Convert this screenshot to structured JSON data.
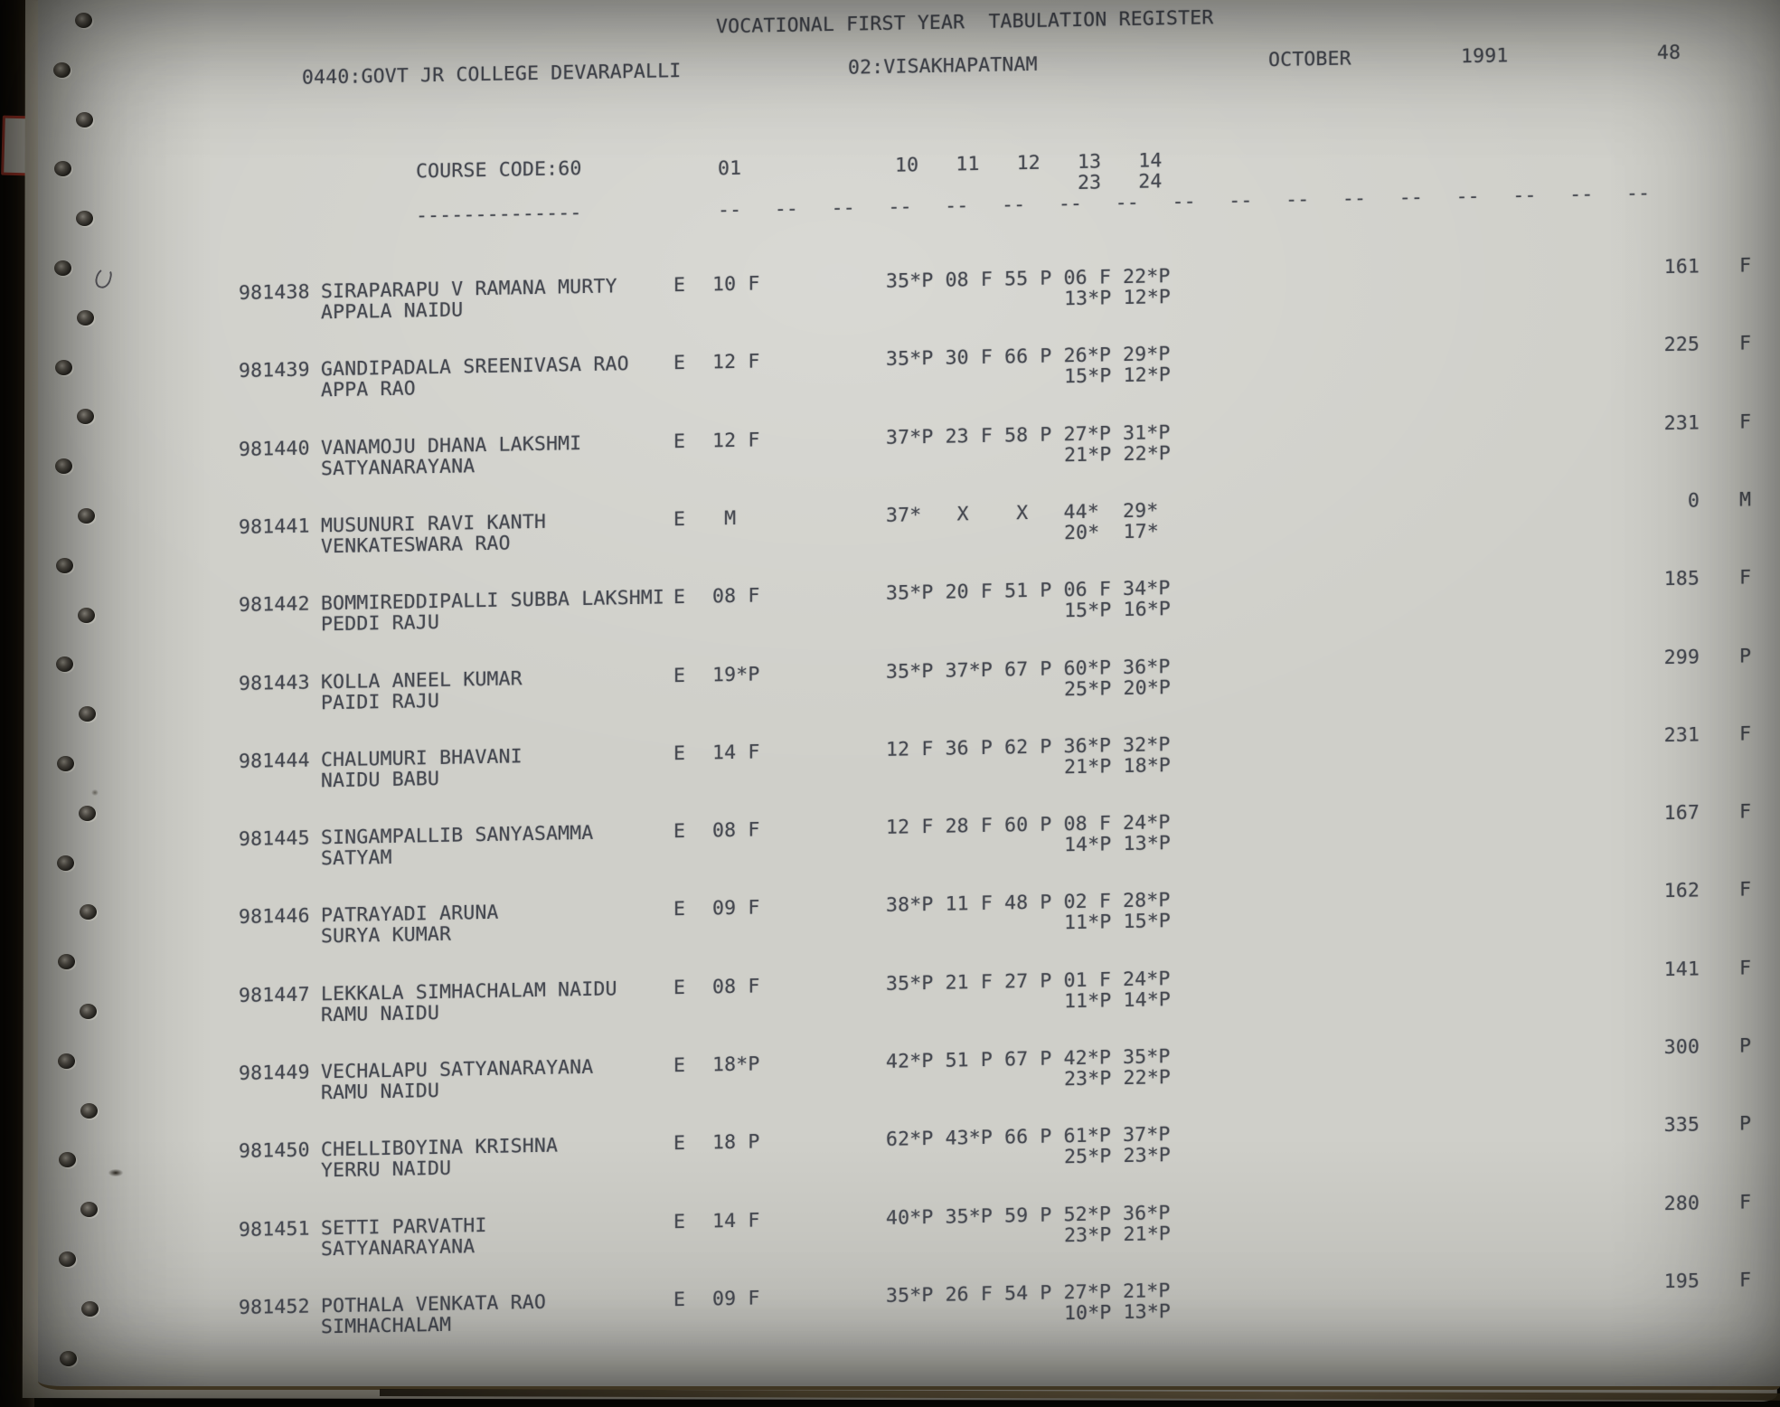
{
  "document": {
    "title": "VOCATIONAL FIRST YEAR  TABULATION REGISTER",
    "college": "0440:GOVT JR COLLEGE DEVARAPALLI",
    "district": "02:VISAKHAPATNAM",
    "month": "OCTOBER",
    "year": "1991",
    "page_number": "48"
  },
  "table": {
    "course_code": "COURSE CODE:60",
    "course_code_underline": "--------------",
    "column_01": "01",
    "subject_columns_row1": "10 11 12 13 14",
    "subject_columns_row2": "23 24",
    "column_separator_dashes": "-- -- -- -- -- -- -- -- -- -- -- -- -- -- -- -- --"
  },
  "students": [
    {
      "roll": "981438",
      "name": "SIRAPARAPU V RAMANA MURTY",
      "parent": "APPALA NAIDU",
      "medium": "E",
      "subject01": "10 F",
      "marks1": "35*P 08 F 55 P 06 F 22*P",
      "marks2": "13*P 12*P",
      "total": "161",
      "result": "F"
    },
    {
      "roll": "981439",
      "name": "GANDIPADALA SREENIVASA RAO",
      "parent": "APPA RAO",
      "medium": "E",
      "subject01": "12 F",
      "marks1": "35*P 30 F 66 P 26*P 29*P",
      "marks2": "15*P 12*P",
      "total": "225",
      "result": "F"
    },
    {
      "roll": "981440",
      "name": "VANAMOJU DHANA LAKSHMI",
      "parent": "SATYANARAYANA",
      "medium": "E",
      "subject01": "12 F",
      "marks1": "37*P 23 F 58 P 27*P 31*P",
      "marks2": "21*P 22*P",
      "total": "231",
      "result": "F"
    },
    {
      "roll": "981441",
      "name": "MUSUNURI RAVI KANTH",
      "parent": "VENKATESWARA RAO",
      "medium": "E",
      "subject01": " M",
      "marks1": "37*   X    X   44*  29*",
      "marks2": "20*  17*",
      "total": "0",
      "result": "M"
    },
    {
      "roll": "981442",
      "name": "BOMMIREDDIPALLI SUBBA LAKSHMI",
      "parent": "PEDDI RAJU",
      "medium": "E",
      "subject01": "08 F",
      "marks1": "35*P 20 F 51 P 06 F 34*P",
      "marks2": "15*P 16*P",
      "total": "185",
      "result": "F"
    },
    {
      "roll": "981443",
      "name": "KOLLA ANEEL KUMAR",
      "parent": "PAIDI RAJU",
      "medium": "E",
      "subject01": "19*P",
      "marks1": "35*P 37*P 67 P 60*P 36*P",
      "marks2": "25*P 20*P",
      "total": "299",
      "result": "P"
    },
    {
      "roll": "981444",
      "name": "CHALUMURI BHAVANI",
      "parent": "NAIDU BABU",
      "medium": "E",
      "subject01": "14 F",
      "marks1": "12 F 36 P 62 P 36*P 32*P",
      "marks2": "21*P 18*P",
      "total": "231",
      "result": "F"
    },
    {
      "roll": "981445",
      "name": "SINGAMPALLIB SANYASAMMA",
      "parent": "SATYAM",
      "medium": "E",
      "subject01": "08 F",
      "marks1": "12 F 28 F 60 P 08 F 24*P",
      "marks2": "14*P 13*P",
      "total": "167",
      "result": "F"
    },
    {
      "roll": "981446",
      "name": "PATRAYADI ARUNA",
      "parent": "SURYA KUMAR",
      "medium": "E",
      "subject01": "09 F",
      "marks1": "38*P 11 F 48 P 02 F 28*P",
      "marks2": "11*P 15*P",
      "total": "162",
      "result": "F"
    },
    {
      "roll": "981447",
      "name": "LEKKALA SIMHACHALAM NAIDU",
      "parent": "RAMU NAIDU",
      "medium": "E",
      "subject01": "08 F",
      "marks1": "35*P 21 F 27 P 01 F 24*P",
      "marks2": "11*P 14*P",
      "total": "141",
      "result": "F"
    },
    {
      "roll": "981449",
      "name": "VECHALAPU SATYANARAYANA",
      "parent": "RAMU NAIDU",
      "medium": "E",
      "subject01": "18*P",
      "marks1": "42*P 51 P 67 P 42*P 35*P",
      "marks2": "23*P 22*P",
      "total": "300",
      "result": "P"
    },
    {
      "roll": "981450",
      "name": "CHELLIBOYINA KRISHNA",
      "parent": "YERRU NAIDU",
      "medium": "E",
      "subject01": "18 P",
      "marks1": "62*P 43*P 66 P 61*P 37*P",
      "marks2": "25*P 23*P",
      "total": "335",
      "result": "P"
    },
    {
      "roll": "981451",
      "name": "SETTI PARVATHI",
      "parent": "SATYANARAYANA",
      "medium": "E",
      "subject01": "14 F",
      "marks1": "40*P 35*P 59 P 52*P 36*P",
      "marks2": "23*P 21*P",
      "total": "280",
      "result": "F"
    },
    {
      "roll": "981452",
      "name": "POTHALA VENKATA RAO",
      "parent": "SIMHACHALAM",
      "medium": "E",
      "subject01": "09 F",
      "marks1": "35*P 26 F 54 P 27*P 21*P",
      "marks2": "10*P 13*P",
      "total": "195",
      "result": "F"
    }
  ]
}
